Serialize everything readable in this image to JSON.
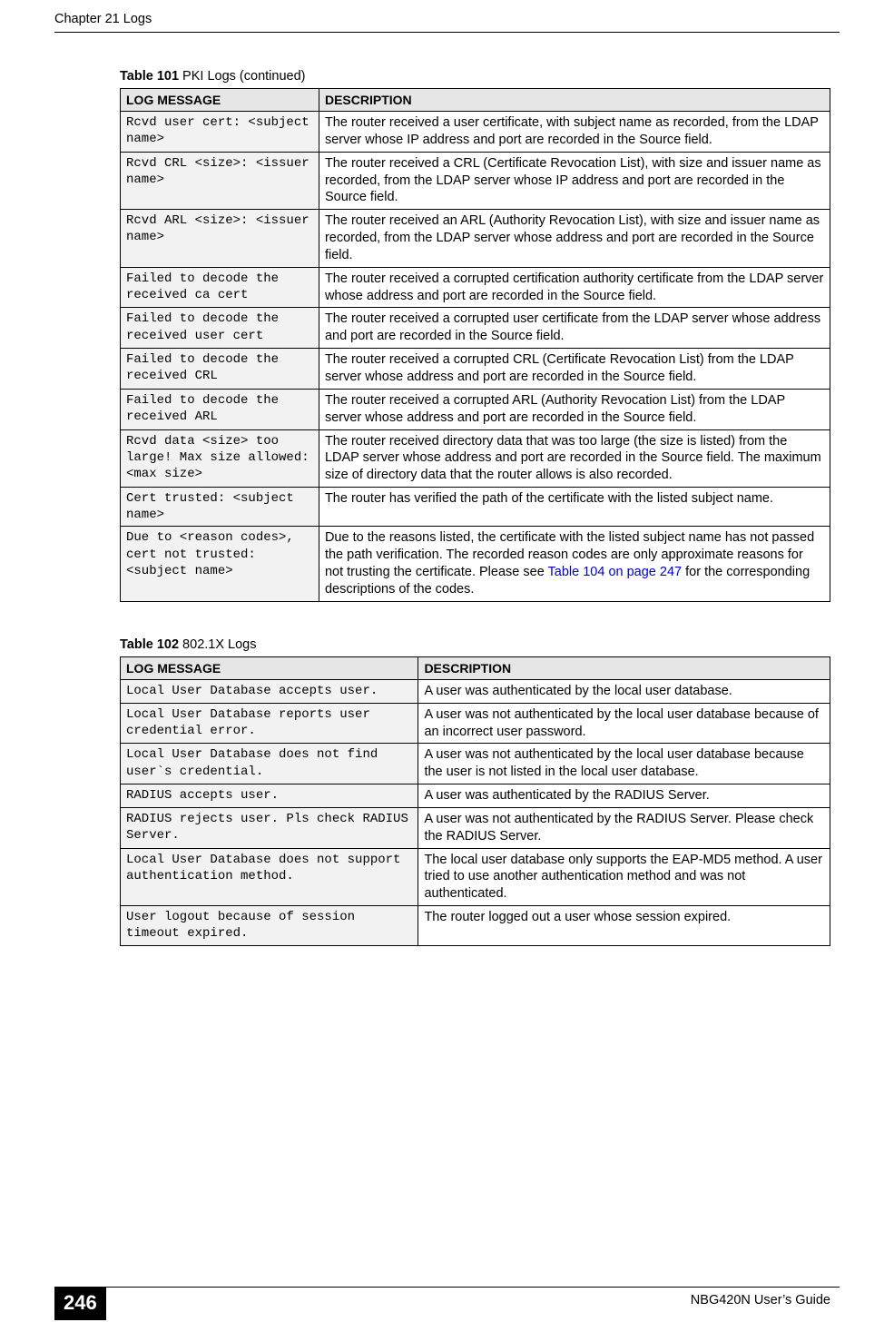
{
  "page": {
    "chapter_heading": "Chapter 21 Logs",
    "page_number": "246",
    "guide_title": "NBG420N User’s Guide"
  },
  "table101": {
    "caption_num": "Table 101",
    "caption_rest": "   PKI Logs (continued)",
    "header_msg": "LOG MESSAGE",
    "header_desc": "DESCRIPTION",
    "rows": [
      {
        "msg": "Rcvd user cert: <subject name>",
        "desc": "The router received a user certificate, with subject name as recorded, from the LDAP server whose IP address and port are recorded in the Source field."
      },
      {
        "msg": "Rcvd CRL <size>: <issuer name>",
        "desc": "The router received a CRL (Certificate Revocation List), with size and issuer name as recorded, from the LDAP server whose IP address and port are recorded in the Source field."
      },
      {
        "msg": "Rcvd ARL <size>: <issuer name>",
        "desc": "The router received an ARL (Authority Revocation List), with size and issuer name as recorded, from the LDAP server whose address and port are recorded in the Source field."
      },
      {
        "msg": "Failed to decode the received ca cert",
        "desc": "The router received a corrupted certification authority certificate from the LDAP server whose address and port are recorded in the Source field."
      },
      {
        "msg": "Failed to decode the received user cert",
        "desc": "The router received a corrupted user certificate from the LDAP server whose address and port are recorded in the Source field."
      },
      {
        "msg": "Failed to decode the received CRL",
        "desc": "The router received a corrupted CRL (Certificate Revocation List) from the LDAP server whose address and port are recorded in the Source field."
      },
      {
        "msg": "Failed to decode the received ARL",
        "desc": "The router received a corrupted ARL (Authority Revocation List) from the LDAP server whose address and port are recorded in the Source field."
      },
      {
        "msg": "Rcvd data <size> too large! Max size allowed: <max size>",
        "desc": "The router received directory data that was too large (the size is listed) from the LDAP server whose address and port are recorded in the Source field. The maximum size of directory data that the router allows is also recorded."
      },
      {
        "msg": "Cert trusted: <subject name>",
        "desc": "The router has verified the path of the certificate with the listed subject name."
      },
      {
        "msg": "Due to <reason codes>, cert not trusted: <subject name>",
        "desc_pre": "Due to the reasons listed, the certificate with the listed subject name has not passed the path verification. The recorded reason codes are only approximate reasons for not trusting the certificate. Please see ",
        "link": "Table 104 on page 247",
        "desc_post": " for the corresponding descriptions of the codes."
      }
    ]
  },
  "table102": {
    "caption_num": "Table 102",
    "caption_rest": "   802.1X Logs",
    "header_msg": "LOG MESSAGE",
    "header_desc": "DESCRIPTION",
    "rows": [
      {
        "msg": "Local User Database accepts user.",
        "desc": "A user was authenticated by the local user database."
      },
      {
        "msg": "Local User Database reports user credential error.",
        "desc": "A user was not authenticated by the local user database because of an incorrect user password."
      },
      {
        "msg": "Local User Database does not find user`s credential.",
        "desc": "A user was not authenticated by the local user database because the user is not listed in the local user database."
      },
      {
        "msg": "RADIUS accepts user.",
        "desc": "A user was authenticated by the RADIUS Server."
      },
      {
        "msg": "RADIUS rejects user. Pls check RADIUS Server.",
        "desc": "A user was not authenticated by the RADIUS Server. Please check the RADIUS Server."
      },
      {
        "msg": "Local User Database does not support authentication method.",
        "desc": "The local user database only supports the EAP-MD5 method. A user tried to use another authentication method and was not authenticated."
      },
      {
        "msg": "User logout because of session timeout expired.",
        "desc": "The router logged out a user whose session expired."
      }
    ]
  }
}
